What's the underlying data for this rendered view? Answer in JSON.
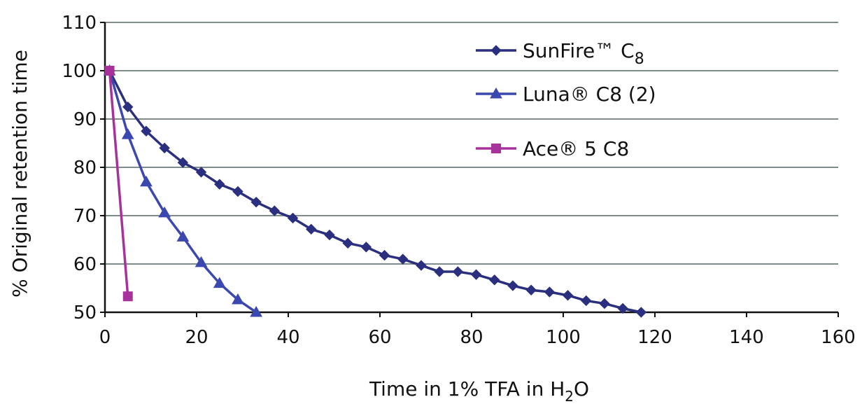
{
  "chart_data": {
    "type": "line",
    "title": "",
    "xlabel": {
      "main": "Time in 1% TFA in H",
      "sub": "2",
      "tail": "O"
    },
    "ylabel": "% Original retention time",
    "xlim": [
      0,
      160
    ],
    "ylim": [
      50,
      110
    ],
    "x_ticks": [
      "0",
      "20",
      "40",
      "60",
      "80",
      "100",
      "120",
      "140",
      "160"
    ],
    "y_ticks": [
      "50",
      "60",
      "70",
      "80",
      "90",
      "100",
      "110"
    ],
    "grid": "horizontal",
    "legend_position": "top-right",
    "series": [
      {
        "name": {
          "main": "SunFire™ C",
          "sub": "8"
        },
        "color": "#2B2F7F",
        "marker": "diamond",
        "x": [
          1,
          5,
          9,
          13,
          17,
          21,
          25,
          29,
          33,
          37,
          41,
          45,
          49,
          53,
          57,
          61,
          65,
          69,
          73,
          77,
          81,
          85,
          89,
          93,
          97,
          101,
          105,
          109,
          113,
          117
        ],
        "y": [
          100,
          92.5,
          87.5,
          84,
          81,
          79,
          76.5,
          75,
          72.8,
          71,
          69.5,
          67.2,
          66,
          64.3,
          63.5,
          61.8,
          61,
          59.7,
          58.4,
          58.4,
          57.8,
          56.7,
          55.5,
          54.6,
          54.2,
          53.5,
          52.4,
          51.8,
          50.8,
          50
        ]
      },
      {
        "name": {
          "main": "Luna® C8 (2)",
          "sub": ""
        },
        "color": "#3A48B0",
        "marker": "triangle",
        "x": [
          1,
          5,
          9,
          13,
          17,
          21,
          25,
          29,
          33
        ],
        "y": [
          100,
          86.8,
          77,
          70.6,
          65.6,
          60.3,
          56,
          52.6,
          50
        ]
      },
      {
        "name": {
          "main": "Ace® 5 C8",
          "sub": ""
        },
        "color": "#A8329B",
        "marker": "square",
        "x": [
          1,
          5
        ],
        "y": [
          100,
          53.3
        ]
      }
    ]
  }
}
